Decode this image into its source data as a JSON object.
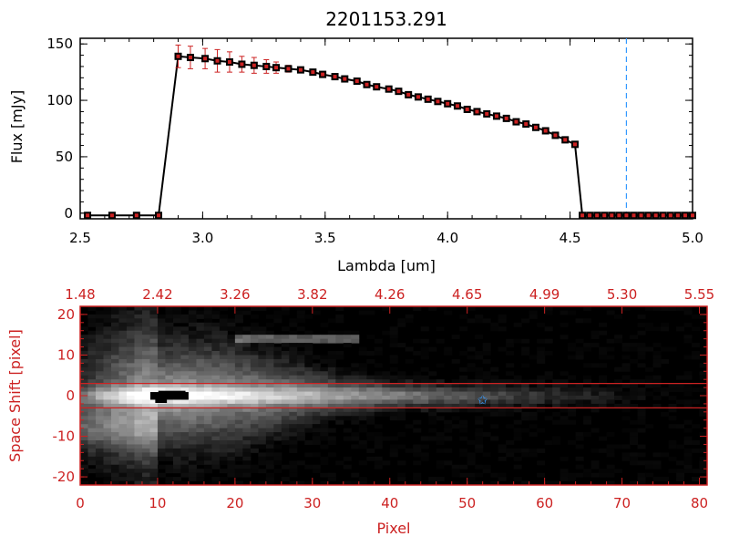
{
  "title": "2201153.291",
  "colors": {
    "axis_black": "#000000",
    "axis_red": "#cc2222",
    "marker_red": "#cc2222",
    "errorbar_red": "#cc2222",
    "blue_line": "#3399ff",
    "aperture_red": "#cc2222",
    "background": "#000000"
  },
  "chart_data": [
    {
      "type": "line",
      "title": "2201153.291",
      "xlabel": "Lambda [um]",
      "ylabel": "Flux [mJy]",
      "xlim": [
        2.5,
        5.0
      ],
      "ylim": [
        -5,
        155
      ],
      "xticks": [
        "2.5",
        "3.0",
        "3.5",
        "4.0",
        "4.5",
        "5.0"
      ],
      "xtick_values": [
        2.5,
        3.0,
        3.5,
        4.0,
        4.5,
        5.0
      ],
      "yticks": [
        "0",
        "50",
        "100",
        "150"
      ],
      "ytick_values": [
        0,
        50,
        100,
        150
      ],
      "vline_x": 4.73,
      "series": [
        {
          "x": [
            2.53,
            2.63,
            2.73,
            2.82,
            2.9,
            2.95,
            3.01,
            3.06,
            3.11,
            3.16,
            3.21,
            3.26,
            3.3,
            3.35,
            3.4,
            3.45,
            3.49,
            3.54,
            3.58,
            3.63,
            3.67,
            3.71,
            3.76,
            3.8,
            3.84,
            3.88,
            3.92,
            3.96,
            4.0,
            4.04,
            4.08,
            4.12,
            4.16,
            4.2,
            4.24,
            4.28,
            4.32,
            4.36,
            4.4,
            4.44,
            4.48,
            4.52,
            4.55,
            4.58,
            4.61,
            4.64,
            4.67,
            4.7,
            4.73,
            4.76,
            4.79,
            4.82,
            4.85,
            4.88,
            4.91,
            4.94,
            4.97,
            5.0
          ],
          "y": [
            -2,
            -2,
            -2,
            -2,
            139,
            138,
            137,
            135,
            134,
            132,
            131,
            130,
            129,
            128,
            127,
            125,
            123,
            121,
            119,
            117,
            114,
            112,
            110,
            108,
            105,
            103,
            101,
            99,
            97,
            95,
            92,
            90,
            88,
            86,
            84,
            81,
            79,
            76,
            73,
            69,
            65,
            61,
            -2,
            -2,
            -2,
            -2,
            -2,
            -2,
            -2,
            -2,
            -2,
            -2,
            -2,
            -2,
            -2,
            -2,
            -2,
            -2
          ],
          "yerr": [
            0,
            0,
            0,
            0,
            10,
            10,
            9,
            10,
            9,
            7,
            7,
            6,
            5,
            3,
            2,
            2,
            2,
            2,
            1,
            1,
            1,
            1,
            1,
            1,
            1,
            1,
            1,
            1,
            1,
            1,
            1,
            1,
            1,
            1,
            1,
            1,
            1,
            1,
            1,
            1,
            1,
            1,
            0,
            0,
            0,
            0,
            0,
            0,
            0,
            0,
            0,
            0,
            0,
            0,
            0,
            0,
            0,
            0
          ]
        }
      ]
    },
    {
      "type": "heatmap",
      "xlabel": "Pixel",
      "ylabel": "Space Shift [pixel]",
      "xlim": [
        0,
        81
      ],
      "ylim": [
        -22,
        22
      ],
      "xticks": [
        "0",
        "10",
        "20",
        "30",
        "40",
        "50",
        "60",
        "70",
        "80"
      ],
      "xtick_values": [
        0,
        10,
        20,
        30,
        40,
        50,
        60,
        70,
        80
      ],
      "yticks": [
        "-20",
        "-10",
        "0",
        "10",
        "20"
      ],
      "ytick_values": [
        -20,
        -10,
        0,
        10,
        20
      ],
      "top_xticks": [
        "1.48",
        "2.42",
        "3.26",
        "3.82",
        "4.26",
        "4.65",
        "4.99",
        "5.30",
        "5.55"
      ],
      "aperture_y": [
        -3,
        3
      ],
      "star_position": [
        52,
        -1
      ]
    }
  ]
}
